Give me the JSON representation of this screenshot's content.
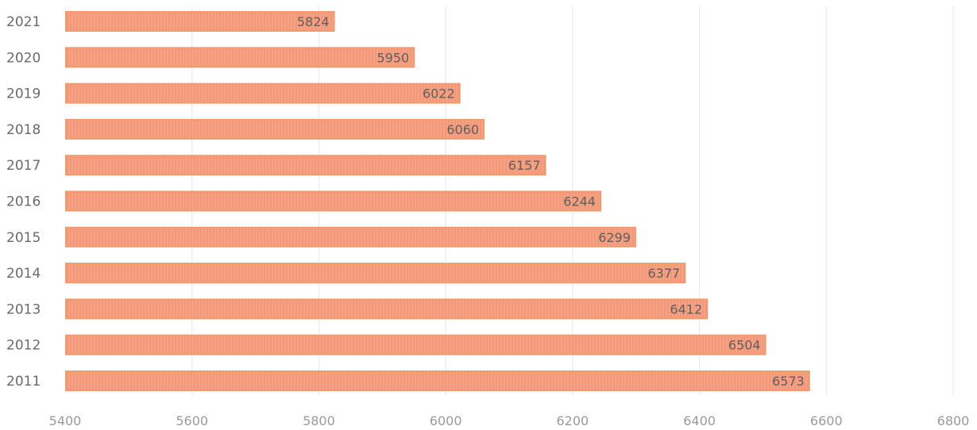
{
  "chart_data": {
    "type": "bar",
    "orientation": "horizontal",
    "categories": [
      "2021",
      "2020",
      "2019",
      "2018",
      "2017",
      "2016",
      "2015",
      "2014",
      "2013",
      "2012",
      "2011"
    ],
    "values": [
      5824,
      5950,
      6022,
      6060,
      6157,
      6244,
      6299,
      6377,
      6412,
      6504,
      6573
    ],
    "value_labels": [
      "5824",
      "5950",
      "6022",
      "6060",
      "6157",
      "6244",
      "6299",
      "6377",
      "6412",
      "6504",
      "6573"
    ],
    "title": "",
    "xlabel": "",
    "ylabel": "",
    "xlim": [
      5400,
      6800
    ],
    "xticks": [
      "5400",
      "5600",
      "5800",
      "6000",
      "6200",
      "6400",
      "6600",
      "6800"
    ],
    "grid": "vertical",
    "legend": "none",
    "colors": {
      "bar_fill": "#f5a080",
      "bar_edge": "#f29a6c",
      "grid": "#e6e6e6"
    }
  }
}
